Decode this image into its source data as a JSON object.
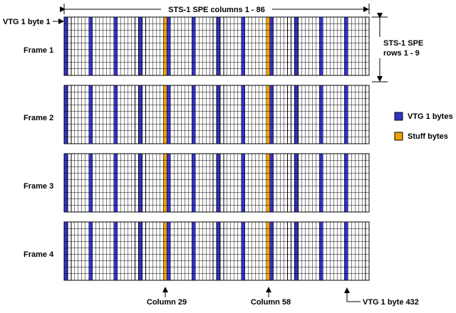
{
  "header": {
    "columns_label": "STS-1 SPE columns 1 - 86"
  },
  "side": {
    "rows_label_line1": "STS-1 SPE",
    "rows_label_line2": "rows 1 - 9"
  },
  "callouts": {
    "first_byte": "VTG 1 byte 1",
    "last_byte": "VTG 1 byte 432",
    "column_29": "Column 29",
    "column_58": "Column 58"
  },
  "frames": [
    {
      "label": "Frame 1"
    },
    {
      "label": "Frame 2"
    },
    {
      "label": "Frame 3"
    },
    {
      "label": "Frame 4"
    }
  ],
  "legend": {
    "items": [
      {
        "label": "VTG 1 bytes",
        "color": "#3333cc"
      },
      {
        "label": "Stuff bytes",
        "color": "#f0a000"
      }
    ]
  },
  "structure": {
    "columns": 86,
    "rows": 9,
    "vtg_columns": [
      1,
      8,
      15,
      22,
      30,
      37,
      44,
      51,
      59,
      66,
      73,
      80
    ],
    "stuff_columns": [
      29,
      58
    ]
  },
  "colors": {
    "grid_line": "#000000",
    "cell_fill": "#ffffff",
    "vtg": "#3333cc",
    "stuff": "#f0a000"
  }
}
